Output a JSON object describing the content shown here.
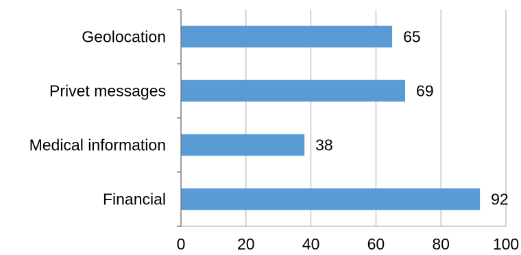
{
  "chart_data": {
    "type": "bar",
    "orientation": "horizontal",
    "categories": [
      "Geolocation",
      "Privet messages",
      "Medical information",
      "Financial"
    ],
    "values": [
      65,
      69,
      38,
      92
    ],
    "xlim": [
      0,
      100
    ],
    "x_ticks": [
      0,
      20,
      40,
      60,
      80,
      100
    ],
    "grid": true,
    "legend": "none",
    "bar_color": "#5b9bd5",
    "data_labels": true
  }
}
